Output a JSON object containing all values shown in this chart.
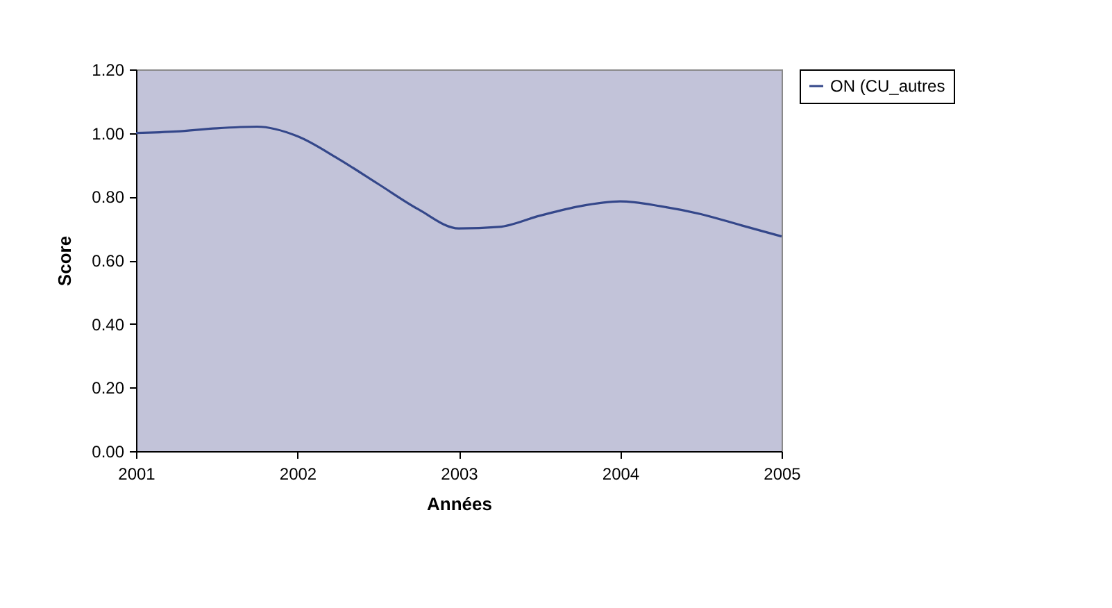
{
  "chart_data": {
    "type": "line",
    "xlabel": "Années",
    "ylabel": "Score",
    "x": [
      2001,
      2001.25,
      2001.5,
      2001.75,
      2002,
      2002.25,
      2002.5,
      2002.75,
      2003,
      2003.25,
      2003.5,
      2003.75,
      2004,
      2004.25,
      2004.5,
      2004.75,
      2005
    ],
    "series": [
      {
        "name": "ON (CU_autres",
        "color": "#34478a",
        "values": [
          1.0,
          1.005,
          1.015,
          1.02,
          0.99,
          0.92,
          0.84,
          0.76,
          0.7,
          0.705,
          0.74,
          0.77,
          0.785,
          0.77,
          0.745,
          0.71,
          0.675
        ]
      }
    ],
    "xlim": [
      2001,
      2005
    ],
    "xticks": [
      2001,
      2002,
      2003,
      2004,
      2005
    ],
    "ylim": [
      0,
      1.2
    ],
    "yticks": [
      {
        "value": 0,
        "label": "0.00"
      },
      {
        "value": 0.2,
        "label": "0.20"
      },
      {
        "value": 0.4,
        "label": "0.40"
      },
      {
        "value": 0.6,
        "label": "0.60"
      },
      {
        "value": 0.8,
        "label": "0.80"
      },
      {
        "value": 1.0,
        "label": "1.00"
      },
      {
        "value": 1.2,
        "label": "1.20"
      }
    ],
    "grid": false,
    "legend": "right",
    "marker": "none",
    "line_style": "solid"
  }
}
